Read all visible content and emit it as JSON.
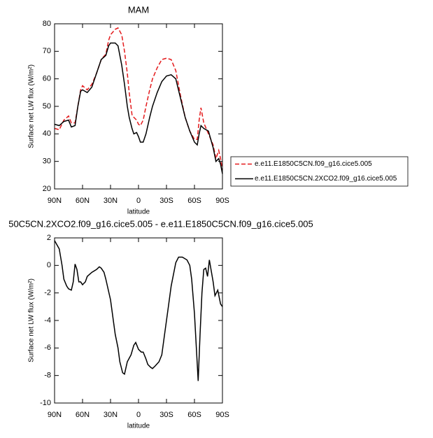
{
  "chart_data": [
    {
      "type": "line",
      "title": "MAM",
      "xlabel": "latitude",
      "ylabel": "Surface net LW flux (W/m²)",
      "x": [
        90,
        85,
        80,
        75,
        72,
        68,
        65,
        62,
        60,
        55,
        50,
        45,
        40,
        35,
        32,
        30,
        25,
        22,
        18,
        15,
        12,
        10,
        7,
        5,
        2,
        0,
        -2,
        -5,
        -8,
        -12,
        -15,
        -20,
        -25,
        -30,
        -35,
        -40,
        -45,
        -50,
        -55,
        -60,
        -63,
        -65,
        -67,
        -70,
        -75,
        -80,
        -83,
        -86,
        -88,
        -90
      ],
      "series": [
        {
          "name": "e.e11.E1850C5CN.f09_g16.cice5.005",
          "color": "#e41a1c",
          "dash": "dashed",
          "values": [
            42,
            41.5,
            45,
            46.5,
            44,
            44,
            50,
            56,
            57.5,
            56,
            58,
            62,
            67,
            69,
            74,
            76,
            78,
            78.5,
            76,
            70,
            62,
            55,
            47,
            46,
            45,
            43.5,
            43,
            45,
            50,
            56,
            60,
            64,
            67,
            67.5,
            67,
            63,
            54,
            46,
            41,
            38,
            38,
            45,
            49.5,
            44,
            40,
            36,
            31,
            34,
            31,
            27
          ]
        },
        {
          "name": "e.e11.E1850C5CN.2XCO2.f09_g16.cice5.005",
          "color": "#000000",
          "dash": "solid",
          "values": [
            43.5,
            43,
            44.5,
            45,
            42.5,
            43,
            50,
            55.5,
            56,
            55,
            57,
            62,
            67,
            68.5,
            72,
            73,
            73,
            72,
            65,
            58,
            50,
            46,
            42,
            40,
            40.5,
            39,
            37,
            37,
            40,
            46,
            50,
            55,
            59,
            61,
            61.5,
            60,
            53,
            46,
            41,
            37,
            36,
            40,
            43,
            42,
            41,
            35,
            30,
            31,
            29,
            25.5
          ]
        }
      ],
      "xlim": [
        90,
        -90
      ],
      "xticks": [
        {
          "value": 90,
          "label": "90N"
        },
        {
          "value": 60,
          "label": "60N"
        },
        {
          "value": 30,
          "label": "30N"
        },
        0,
        {
          "value": -30,
          "label": "30S"
        },
        {
          "value": -60,
          "label": "60S"
        },
        {
          "value": -90,
          "label": "90S"
        }
      ],
      "ylim": [
        20,
        80
      ],
      "yticks": [
        20,
        30,
        40,
        50,
        60,
        70,
        80
      ],
      "legend": "right"
    },
    {
      "type": "line",
      "title": "50C5CN.2XCO2.f09_g16.cice5.005 - e.e11.E1850C5CN.f09_g16.cice5.005",
      "xlabel": "latitude",
      "ylabel": "Surface net LW flux (W/m²)",
      "x": [
        90,
        85,
        82,
        80,
        77,
        75,
        72,
        70,
        68,
        66,
        64,
        62,
        60,
        57,
        55,
        50,
        45,
        42,
        40,
        37,
        35,
        30,
        27,
        25,
        22,
        20,
        17,
        15,
        12,
        8,
        5,
        3,
        0,
        -3,
        -5,
        -8,
        -10,
        -13,
        -15,
        -18,
        -22,
        -25,
        -28,
        -32,
        -35,
        -40,
        -43,
        -47,
        -52,
        -55,
        -57,
        -60,
        -62,
        -64,
        -66,
        -68,
        -70,
        -72,
        -74,
        -76,
        -78,
        -80,
        -82,
        -85,
        -88,
        -90
      ],
      "series": [
        {
          "color": "#000000",
          "dash": "solid",
          "values": [
            1.8,
            1.2,
            0,
            -1,
            -1.5,
            -1.7,
            -1.8,
            -1.2,
            0.1,
            -0.3,
            -1.2,
            -1.2,
            -1.4,
            -1.2,
            -0.8,
            -0.5,
            -0.3,
            -0.1,
            -0.2,
            -0.5,
            -1,
            -2.5,
            -4,
            -5,
            -6,
            -7,
            -7.8,
            -7.9,
            -7,
            -6.5,
            -5.8,
            -5.6,
            -6.1,
            -6.3,
            -6.3,
            -6.8,
            -7.2,
            -7.4,
            -7.5,
            -7.3,
            -7,
            -6.5,
            -5,
            -3,
            -1.5,
            0.2,
            0.6,
            0.6,
            0.4,
            0,
            -1,
            -3.5,
            -6,
            -8.4,
            -5,
            -2,
            -0.3,
            -0.2,
            -0.8,
            0.4,
            -0.4,
            -1.2,
            -2.2,
            -1.8,
            -2.8,
            -3
          ]
        }
      ],
      "xlim": [
        90,
        -90
      ],
      "xticks": [
        {
          "value": 90,
          "label": "90N"
        },
        {
          "value": 60,
          "label": "60N"
        },
        {
          "value": 30,
          "label": "30N"
        },
        0,
        {
          "value": -30,
          "label": "30S"
        },
        {
          "value": -60,
          "label": "60S"
        },
        {
          "value": -90,
          "label": "90S"
        }
      ],
      "ylim": [
        -10,
        2
      ],
      "yticks": [
        -10,
        -8,
        -6,
        -4,
        -2,
        0,
        2
      ]
    }
  ]
}
